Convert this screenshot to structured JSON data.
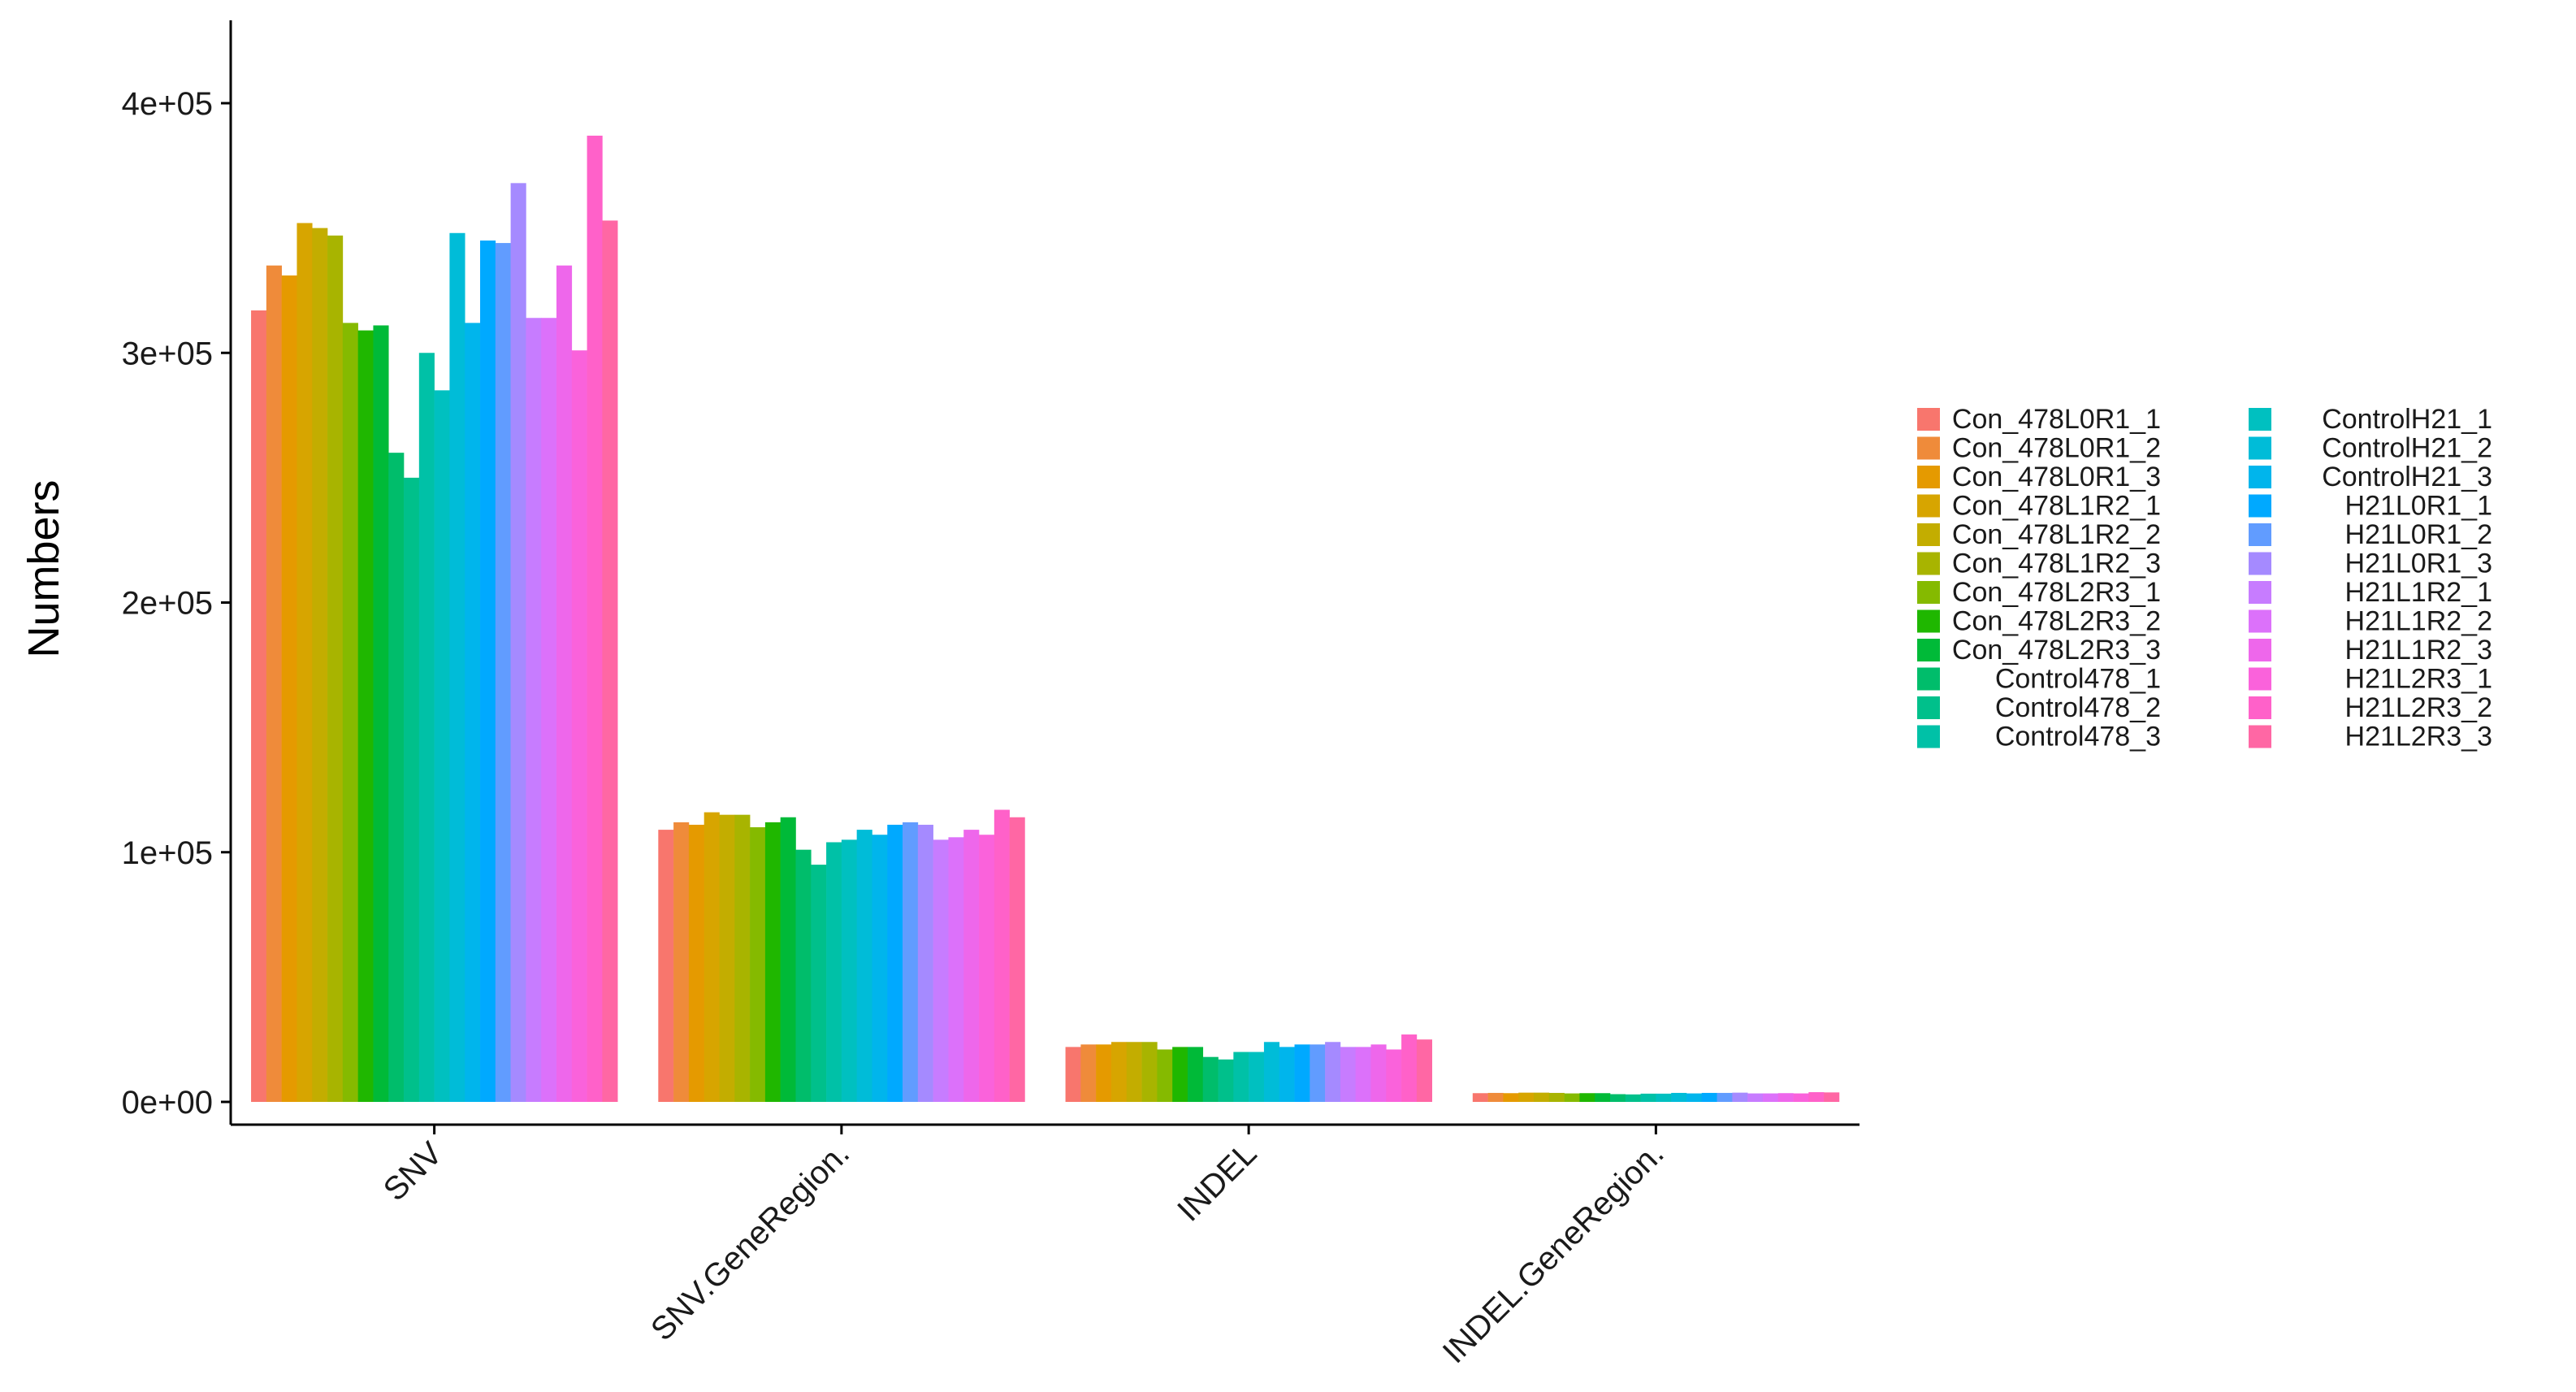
{
  "chart_data": {
    "type": "bar",
    "ylabel": "Numbers",
    "xlabel": "",
    "ylim": [
      0,
      440000
    ],
    "yticks": [
      0,
      100000,
      200000,
      300000,
      400000
    ],
    "ytick_labels": [
      "0e+00",
      "1e+05",
      "2e+05",
      "3e+05",
      "4e+05"
    ],
    "categories": [
      "SNV",
      "SNV.GeneRegion.",
      "INDEL",
      "INDEL.GeneRegion."
    ],
    "grid": false,
    "legend_position": "right",
    "series": [
      {
        "name": "Con_478L0R1_1",
        "color": "#F8766D",
        "values": [
          317000,
          109000,
          22000,
          3500
        ]
      },
      {
        "name": "Con_478L0R1_2",
        "color": "#EF8B3A",
        "values": [
          335000,
          112000,
          23000,
          3600
        ]
      },
      {
        "name": "Con_478L0R1_3",
        "color": "#E59A00",
        "values": [
          331000,
          111000,
          23000,
          3500
        ]
      },
      {
        "name": "Con_478L1R2_1",
        "color": "#D7A500",
        "values": [
          352000,
          116000,
          24000,
          3700
        ]
      },
      {
        "name": "Con_478L1R2_2",
        "color": "#C3AD00",
        "values": [
          350000,
          115000,
          24000,
          3700
        ]
      },
      {
        "name": "Con_478L1R2_3",
        "color": "#A8B400",
        "values": [
          347000,
          115000,
          24000,
          3600
        ]
      },
      {
        "name": "Con_478L2R3_1",
        "color": "#85BA00",
        "values": [
          312000,
          110000,
          21000,
          3400
        ]
      },
      {
        "name": "Con_478L2R3_2",
        "color": "#1FB700",
        "values": [
          309000,
          112000,
          22000,
          3500
        ]
      },
      {
        "name": "Con_478L2R3_3",
        "color": "#00BA38",
        "values": [
          311000,
          114000,
          22000,
          3500
        ]
      },
      {
        "name": "Control478_1",
        "color": "#00BD6B",
        "values": [
          260000,
          101000,
          18000,
          3100
        ]
      },
      {
        "name": "Control478_2",
        "color": "#00C08B",
        "values": [
          250000,
          95000,
          17000,
          3000
        ]
      },
      {
        "name": "Control478_3",
        "color": "#00C1A7",
        "values": [
          300000,
          104000,
          20000,
          3300
        ]
      },
      {
        "name": "ControlH21_1",
        "color": "#00C0C0",
        "values": [
          285000,
          105000,
          20000,
          3300
        ]
      },
      {
        "name": "ControlH21_2",
        "color": "#00BCD8",
        "values": [
          348000,
          109000,
          24000,
          3600
        ]
      },
      {
        "name": "ControlH21_3",
        "color": "#00B5EC",
        "values": [
          312000,
          107000,
          22000,
          3400
        ]
      },
      {
        "name": "H21L0R1_1",
        "color": "#00A9FF",
        "values": [
          345000,
          111000,
          23000,
          3600
        ]
      },
      {
        "name": "H21L0R1_2",
        "color": "#619CFF",
        "values": [
          344000,
          112000,
          23000,
          3600
        ]
      },
      {
        "name": "H21L0R1_3",
        "color": "#A58AFF",
        "values": [
          368000,
          111000,
          24000,
          3700
        ]
      },
      {
        "name": "H21L1R2_1",
        "color": "#C77CFF",
        "values": [
          314000,
          105000,
          22000,
          3400
        ]
      },
      {
        "name": "H21L1R2_2",
        "color": "#DC71FA",
        "values": [
          314000,
          106000,
          22000,
          3400
        ]
      },
      {
        "name": "H21L1R2_3",
        "color": "#EE67EB",
        "values": [
          335000,
          109000,
          23000,
          3500
        ]
      },
      {
        "name": "H21L2R3_1",
        "color": "#FA62DB",
        "values": [
          301000,
          107000,
          21000,
          3400
        ]
      },
      {
        "name": "H21L2R3_2",
        "color": "#FF61C9",
        "values": [
          387000,
          117000,
          27000,
          3900
        ]
      },
      {
        "name": "H21L2R3_3",
        "color": "#FF67A4",
        "values": [
          353000,
          114000,
          25000,
          3800
        ]
      }
    ]
  }
}
